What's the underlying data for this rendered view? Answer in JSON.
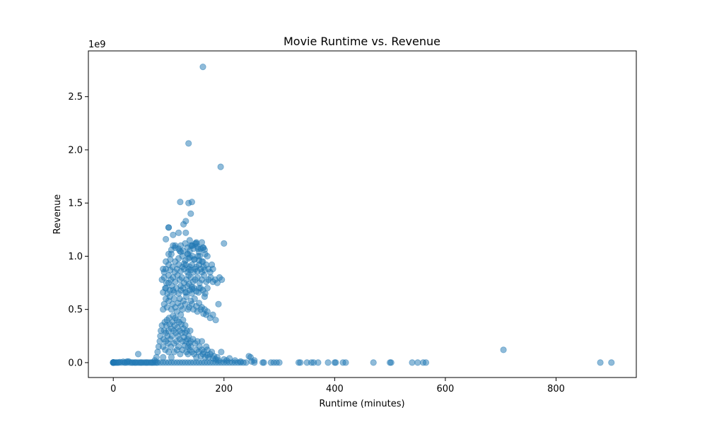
{
  "chart_data": {
    "type": "scatter",
    "title": "Movie Runtime vs. Revenue",
    "xlabel": "Runtime (minutes)",
    "ylabel": "Revenue",
    "y_offset_text": "1e9",
    "xlim": [
      -45,
      945
    ],
    "ylim": [
      -0.14,
      2.93
    ],
    "y_scale_note": "values in units of 1e9",
    "xticks": [
      0,
      200,
      400,
      600,
      800
    ],
    "xtick_labels": [
      "0",
      "200",
      "400",
      "600",
      "800"
    ],
    "yticks": [
      0.0,
      0.5,
      1.0,
      1.5,
      2.0,
      2.5
    ],
    "ytick_labels": [
      "0.0",
      "0.5",
      "1.0",
      "1.5",
      "2.0",
      "2.5"
    ],
    "grid": false,
    "legend": "none",
    "marker_color": "#1f77b4",
    "marker_alpha": 0.5,
    "series": [
      {
        "x": [
          0,
          0,
          0,
          0,
          0,
          0,
          0,
          0,
          0,
          2,
          4,
          6,
          8,
          10,
          12,
          15,
          18,
          20,
          22,
          25,
          28,
          30,
          33,
          35,
          38,
          40,
          42,
          45,
          48,
          50,
          52,
          55,
          58,
          60,
          62,
          65,
          68,
          70,
          72,
          75,
          78,
          80,
          85,
          90,
          95,
          100,
          105,
          110,
          115,
          120,
          125,
          130,
          135,
          140,
          145,
          150,
          155,
          160,
          165,
          170,
          175,
          180,
          185,
          190,
          195,
          200,
          205,
          210,
          215,
          220,
          225,
          230,
          235,
          240,
          245,
          250,
          255,
          270,
          272,
          285,
          290,
          295,
          300,
          335,
          338,
          350,
          358,
          362,
          370,
          388,
          400,
          402,
          415,
          420,
          470,
          500,
          502,
          540,
          550,
          560,
          565,
          880,
          900,
          25,
          45,
          75,
          78,
          80,
          82,
          84,
          85,
          86,
          88,
          90,
          90,
          91,
          92,
          93,
          94,
          95,
          95,
          96,
          97,
          98,
          99,
          100,
          100,
          101,
          102,
          103,
          104,
          105,
          105,
          106,
          107,
          108,
          109,
          110,
          110,
          111,
          112,
          113,
          114,
          115,
          115,
          116,
          117,
          118,
          119,
          120,
          120,
          121,
          122,
          123,
          124,
          125,
          125,
          126,
          127,
          128,
          129,
          130,
          130,
          131,
          132,
          133,
          134,
          135,
          135,
          136,
          137,
          138,
          139,
          140,
          140,
          142,
          144,
          146,
          148,
          150,
          150,
          152,
          154,
          156,
          158,
          160,
          160,
          162,
          164,
          166,
          168,
          170,
          170,
          172,
          175,
          178,
          180,
          182,
          185,
          188,
          190,
          195,
          200,
          205,
          210,
          220,
          230,
          248,
          255,
          90,
          92,
          95,
          97,
          100,
          102,
          105,
          107,
          110,
          112,
          115,
          117,
          120,
          122,
          125,
          127,
          130,
          132,
          135,
          137,
          140,
          142,
          145,
          147,
          150,
          152,
          155,
          158,
          160,
          163,
          165,
          168,
          170,
          175,
          180,
          185,
          190,
          90,
          94,
          98,
          102,
          106,
          110,
          114,
          118,
          122,
          126,
          130,
          134,
          138,
          142,
          146,
          150,
          154,
          158,
          162,
          166,
          170,
          88,
          92,
          96,
          100,
          104,
          108,
          112,
          116,
          120,
          124,
          128,
          132,
          136,
          140,
          144,
          148,
          152,
          156,
          160,
          164,
          168,
          172,
          176,
          180,
          184,
          188,
          192,
          196,
          705,
          92,
          95,
          100,
          103,
          107,
          111,
          115,
          118,
          122,
          125,
          128,
          131,
          134,
          136,
          138,
          140,
          142,
          145,
          148,
          150,
          152,
          155,
          158,
          160,
          163,
          165,
          168,
          172,
          175,
          178,
          180,
          90,
          95,
          100,
          103,
          108,
          112,
          118,
          120,
          125,
          128,
          130,
          134,
          136,
          138,
          140,
          143,
          146,
          150,
          153,
          155,
          158,
          160,
          163,
          166,
          170,
          95,
          100,
          105,
          108,
          112,
          118,
          122,
          126,
          130,
          134,
          138,
          142,
          145,
          148,
          152,
          155,
          160,
          165,
          100,
          105,
          112,
          118,
          122,
          127,
          131,
          135,
          138,
          140,
          143,
          147,
          150,
          153,
          156,
          162,
          95,
          100,
          108,
          122,
          132,
          137,
          142,
          143,
          155,
          165,
          200,
          121,
          131,
          136,
          142,
          162,
          136,
          194,
          162
        ],
        "y": [
          0,
          0,
          0,
          0,
          0,
          0,
          0,
          0,
          0,
          0,
          0,
          0,
          0,
          0,
          0.005,
          0,
          0.008,
          0,
          0,
          0,
          0.01,
          0,
          0,
          0,
          0,
          0,
          0,
          0,
          0,
          0,
          0,
          0,
          0,
          0,
          0,
          0,
          0,
          0,
          0,
          0,
          0,
          0,
          0,
          0,
          0,
          0,
          0,
          0,
          0,
          0,
          0,
          0,
          0,
          0,
          0,
          0,
          0,
          0,
          0,
          0,
          0,
          0,
          0,
          0,
          0,
          0,
          0,
          0,
          0,
          0,
          0,
          0,
          0,
          0,
          0.06,
          0.01,
          0,
          0,
          0,
          0,
          0,
          0,
          0,
          0,
          0,
          0,
          0,
          0,
          0,
          0,
          0,
          0,
          0,
          0,
          0,
          0,
          0,
          0,
          0,
          0,
          0,
          0,
          0,
          0.01,
          0.08,
          0.02,
          0.05,
          0.1,
          0.15,
          0.2,
          0.25,
          0.3,
          0.35,
          0.05,
          0.15,
          0.22,
          0.3,
          0.38,
          0.12,
          0.2,
          0.28,
          0.35,
          0.4,
          0.25,
          0.18,
          0.1,
          0.3,
          0.42,
          0.36,
          0.22,
          0.15,
          0.05,
          0.32,
          0.25,
          0.38,
          0.44,
          0.3,
          0.18,
          0.1,
          0.35,
          0.42,
          0.28,
          0.2,
          0.12,
          0.4,
          0.33,
          0.25,
          0.15,
          0.38,
          0.3,
          0.22,
          0.08,
          0.45,
          0.36,
          0.28,
          0.2,
          0.12,
          0.4,
          0.32,
          0.24,
          0.16,
          0.35,
          0.28,
          0.2,
          0.1,
          0.3,
          0.22,
          0.15,
          0.08,
          0.25,
          0.18,
          0.12,
          0.3,
          0.2,
          0.15,
          0.1,
          0.22,
          0.08,
          0.18,
          0.12,
          0.05,
          0.2,
          0.1,
          0.15,
          0.06,
          0.12,
          0.2,
          0.08,
          0.1,
          0.05,
          0.15,
          0.07,
          0.12,
          0.05,
          0.08,
          0.1,
          0.04,
          0.06,
          0.03,
          0.05,
          0.02,
          0.1,
          0.03,
          0.02,
          0.04,
          0.02,
          0.01,
          0.05,
          0.02,
          0.5,
          0.55,
          0.6,
          0.52,
          0.58,
          0.62,
          0.5,
          0.55,
          0.6,
          0.52,
          0.48,
          0.56,
          0.6,
          0.53,
          0.5,
          0.58,
          0.55,
          0.62,
          0.5,
          0.52,
          0.58,
          0.55,
          0.5,
          0.6,
          0.53,
          0.48,
          0.56,
          0.5,
          0.52,
          0.46,
          0.5,
          0.45,
          0.48,
          0.42,
          0.45,
          0.4,
          0.55,
          0.66,
          0.7,
          0.65,
          0.68,
          0.72,
          0.66,
          0.7,
          0.65,
          0.68,
          0.7,
          0.66,
          0.72,
          0.68,
          0.65,
          0.7,
          0.67,
          0.66,
          0.7,
          0.68,
          0.65,
          0.7,
          0.78,
          0.8,
          0.75,
          0.82,
          0.78,
          0.8,
          0.76,
          0.82,
          0.78,
          0.8,
          0.75,
          0.78,
          0.82,
          0.8,
          0.76,
          0.78,
          0.8,
          0.75,
          0.78,
          0.82,
          0.76,
          0.78,
          0.8,
          0.76,
          0.78,
          0.75,
          0.8,
          0.78,
          0.12,
          0.85,
          0.88,
          0.92,
          0.87,
          0.9,
          0.85,
          0.88,
          0.92,
          0.86,
          0.9,
          0.88,
          0.92,
          0.85,
          0.88,
          0.9,
          0.87,
          0.92,
          0.85,
          0.88,
          0.9,
          0.86,
          0.92,
          0.88,
          0.85,
          0.9,
          0.87,
          0.92,
          0.88,
          0.85,
          0.92,
          0.88,
          0.88,
          0.95,
          1.02,
          0.97,
          1.1,
          0.95,
          0.98,
          1.05,
          1.0,
          0.93,
          0.96,
          1.02,
          0.98,
          1.05,
          1.1,
          1.0,
          0.97,
          1.13,
          1.0,
          0.96,
          1.07,
          0.95,
          1.08,
          1.02,
          1.0,
          1.16,
          1.27,
          1.06,
          1.2,
          1.08,
          1.22,
          1.1,
          1.05,
          1.12,
          1.08,
          1.15,
          1.1,
          1.07,
          1.12,
          1.09,
          1.04,
          1.13,
          1.06,
          1.27,
          1.02,
          1.1,
          1.07,
          1.04,
          1.3,
          1.22,
          1.02,
          0.99,
          1.4,
          1.1,
          0.97,
          1.12,
          1.07,
          1.0,
          0.95,
          0.7,
          0.75,
          0.68,
          0.72,
          0.66,
          0.74,
          0.71,
          0.69,
          0.7,
          0.62,
          1.12,
          1.51,
          1.33,
          1.5,
          1.51,
          1.08,
          2.06,
          1.84,
          2.78
        ]
      }
    ]
  }
}
